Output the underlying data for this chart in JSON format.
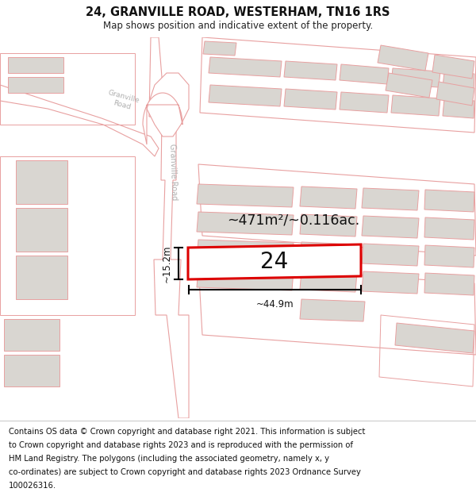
{
  "title": "24, GRANVILLE ROAD, WESTERHAM, TN16 1RS",
  "subtitle": "Map shows position and indicative extent of the property.",
  "footer_lines": [
    "Contains OS data © Crown copyright and database right 2021. This information is subject",
    "to Crown copyright and database rights 2023 and is reproduced with the permission of",
    "HM Land Registry. The polygons (including the associated geometry, namely x, y",
    "co-ordinates) are subject to Crown copyright and database rights 2023 Ordnance Survey",
    "100026316."
  ],
  "area_label": "~471m²/~0.116ac.",
  "width_label": "~44.9m",
  "height_label": "~15.2m",
  "number_label": "24",
  "map_bg": "#f7f5f2",
  "road_fill": "#ffffff",
  "building_fill": "#d9d6d1",
  "plot_outline_color": "#dd0000",
  "road_line_color": "#e8a0a0",
  "block_line_color": "#e8a0a0",
  "road_label_color": "#b0b0b0",
  "title_fontsize": 10.5,
  "subtitle_fontsize": 8.5,
  "footer_fontsize": 7.2
}
